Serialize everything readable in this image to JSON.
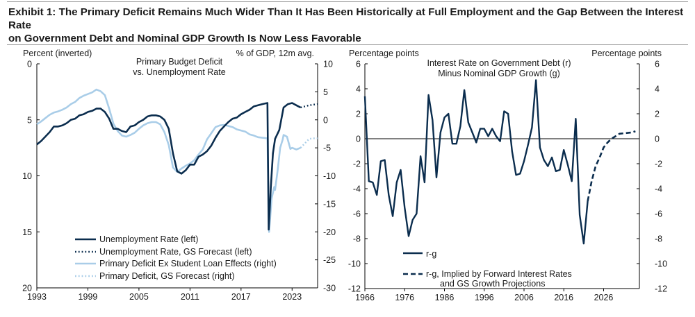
{
  "exhibit": {
    "title_line1": "Exhibit 1: The Primary Deficit Remains Much Wider Than It Has Been Historically at Full Employment and the Gap Between the Interest Rate",
    "title_line2": "on Government Debt and Nominal GDP Growth Is Now Less Favorable"
  },
  "colors": {
    "dark_navy": "#0b2d4e",
    "light_blue": "#a9cde8"
  },
  "chart_data": [
    {
      "type": "line",
      "title": "Primary Budget Deficit vs. Unemployment Rate",
      "title_lines": [
        "Primary Budget Deficit",
        "vs. Unemployment Rate"
      ],
      "left_axis": {
        "label": "Percent (inverted)",
        "ylim": [
          0,
          20
        ],
        "inverted": true,
        "ticks": [
          0,
          5,
          10,
          15,
          20
        ]
      },
      "right_axis": {
        "label": "% of GDP, 12m avg.",
        "ylim": [
          -30,
          10
        ],
        "ticks": [
          10,
          5,
          0,
          -5,
          -10,
          -15,
          -20,
          -25,
          -30
        ]
      },
      "xlim": [
        1993,
        2026
      ],
      "x_ticks": [
        1993,
        1999,
        2005,
        2011,
        2017,
        2023
      ],
      "legend_position": "bottom-left",
      "series": [
        {
          "name": "Unemployment Rate (left)",
          "axis": "left",
          "style": "solid",
          "color": "#0b2d4e",
          "x": [
            1993,
            1993.5,
            1994,
            1994.5,
            1995,
            1995.5,
            1996,
            1996.5,
            1997,
            1997.5,
            1998,
            1998.5,
            1999,
            1999.5,
            2000,
            2000.5,
            2001,
            2001.5,
            2002,
            2002.5,
            2003,
            2003.5,
            2004,
            2004.5,
            2005,
            2005.5,
            2006,
            2006.5,
            2007,
            2007.5,
            2008,
            2008.5,
            2009,
            2009.5,
            2010,
            2010.5,
            2011,
            2011.5,
            2012,
            2012.5,
            2013,
            2013.5,
            2014,
            2014.5,
            2015,
            2015.5,
            2016,
            2016.5,
            2017,
            2017.5,
            2018,
            2018.5,
            2019,
            2019.5,
            2020.1,
            2020.25,
            2020.5,
            2020.75,
            2021,
            2021.5,
            2022,
            2022.5,
            2023,
            2023.5,
            2024
          ],
          "y": [
            7.2,
            6.9,
            6.5,
            6.1,
            5.6,
            5.6,
            5.5,
            5.3,
            5.0,
            4.9,
            4.6,
            4.5,
            4.3,
            4.2,
            4.0,
            4.0,
            4.3,
            4.9,
            5.8,
            5.8,
            6.0,
            6.1,
            5.6,
            5.5,
            5.2,
            5.0,
            4.7,
            4.6,
            4.6,
            4.7,
            5.0,
            5.8,
            8.0,
            9.6,
            9.8,
            9.5,
            9.0,
            9.0,
            8.3,
            8.1,
            7.8,
            7.3,
            6.6,
            6.0,
            5.6,
            5.2,
            4.9,
            4.8,
            4.5,
            4.3,
            4.1,
            3.8,
            3.7,
            3.6,
            3.5,
            14.8,
            11.0,
            8.0,
            6.7,
            5.9,
            3.9,
            3.6,
            3.5,
            3.7,
            3.9
          ]
        },
        {
          "name": "Unemployment Rate, GS Forecast (left)",
          "axis": "left",
          "style": "dotted",
          "color": "#0b2d4e",
          "x": [
            2024,
            2024.5,
            2025,
            2025.5,
            2026
          ],
          "y": [
            3.9,
            3.8,
            3.7,
            3.65,
            3.6
          ]
        },
        {
          "name": "Primary Deficit Ex Student Loan Effects (right)",
          "axis": "right",
          "style": "solid",
          "color": "#a9cde8",
          "x": [
            1993,
            1993.5,
            1994,
            1994.5,
            1995,
            1995.5,
            1996,
            1996.5,
            1997,
            1997.5,
            1998,
            1998.5,
            1999,
            1999.5,
            2000,
            2000.5,
            2001,
            2001.5,
            2002,
            2002.5,
            2003,
            2003.5,
            2004,
            2004.5,
            2005,
            2005.5,
            2006,
            2006.5,
            2007,
            2007.5,
            2008,
            2008.5,
            2009,
            2009.5,
            2010,
            2010.5,
            2011,
            2011.5,
            2012,
            2012.5,
            2013,
            2013.5,
            2014,
            2014.5,
            2015,
            2015.5,
            2016,
            2016.5,
            2017,
            2017.5,
            2018,
            2018.5,
            2019,
            2019.5,
            2020.1,
            2020.3,
            2020.6,
            2020.9,
            2021,
            2021.3,
            2021.6,
            2021.9,
            2022,
            2022.4,
            2022.8,
            2023,
            2023.5,
            2024
          ],
          "y": [
            -0.8,
            -0.3,
            0.3,
            0.9,
            1.3,
            1.5,
            1.8,
            2.2,
            2.8,
            3.2,
            3.9,
            4.3,
            4.6,
            4.9,
            5.4,
            5.1,
            4.4,
            2.0,
            -0.7,
            -2.0,
            -2.8,
            -3.0,
            -2.7,
            -2.3,
            -1.6,
            -1.0,
            -0.6,
            -0.4,
            -0.4,
            -0.8,
            -2.2,
            -4.5,
            -8.5,
            -9.3,
            -8.7,
            -8.2,
            -7.8,
            -7.2,
            -6.2,
            -5.3,
            -3.5,
            -2.4,
            -1.3,
            -1.0,
            -0.9,
            -1.1,
            -1.3,
            -1.7,
            -1.9,
            -2.1,
            -2.6,
            -2.8,
            -3.1,
            -3.2,
            -3.3,
            -20.0,
            -14.0,
            -12.0,
            -12.5,
            -9.0,
            -5.0,
            -3.5,
            -2.7,
            -3.0,
            -5.2,
            -5.0,
            -5.3,
            -5.0
          ]
        },
        {
          "name": "Primary Deficit, GS Forecast (right)",
          "axis": "right",
          "style": "dotted",
          "color": "#a9cde8",
          "x": [
            2024,
            2024.5,
            2025,
            2025.5,
            2026
          ],
          "y": [
            -5.0,
            -4.2,
            -3.4,
            -3.3,
            -3.3
          ]
        }
      ]
    },
    {
      "type": "line",
      "title": "Interest Rate on Government Debt (r) Minus Nominal GDP Growth (g)",
      "title_lines": [
        "Interest Rate on Government Debt (r)",
        "Minus Nominal GDP Growth (g)"
      ],
      "left_axis": {
        "label": "Percentage points",
        "ylim": [
          -12,
          6
        ],
        "ticks": [
          6,
          4,
          2,
          0,
          -2,
          -4,
          -6,
          -8,
          -10,
          -12
        ]
      },
      "right_axis": {
        "label": "Percentage points",
        "ylim": [
          -12,
          6
        ],
        "ticks": [
          6,
          4,
          2,
          0,
          -2,
          -4,
          -6,
          -8,
          -10,
          -12
        ]
      },
      "xlim": [
        1966,
        2035
      ],
      "x_ticks": [
        1966,
        1976,
        1986,
        1996,
        2006,
        2016,
        2026
      ],
      "legend_position": "bottom-left",
      "series": [
        {
          "name": "r-g",
          "axis": "left",
          "style": "solid",
          "color": "#0b2d4e",
          "x": [
            1966,
            1967,
            1968,
            1969,
            1970,
            1971,
            1972,
            1973,
            1974,
            1975,
            1976,
            1977,
            1978,
            1979,
            1980,
            1981,
            1982,
            1983,
            1984,
            1985,
            1986,
            1987,
            1988,
            1989,
            1990,
            1991,
            1992,
            1993,
            1994,
            1995,
            1996,
            1997,
            1998,
            1999,
            2000,
            2001,
            2002,
            2003,
            2004,
            2005,
            2006,
            2007,
            2008,
            2009,
            2010,
            2011,
            2012,
            2013,
            2014,
            2015,
            2016,
            2017,
            2018,
            2019,
            2020,
            2021,
            2022
          ],
          "y": [
            3.4,
            -3.4,
            -3.5,
            -4.5,
            -1.8,
            -1.7,
            -4.5,
            -6.2,
            -3.5,
            -2.5,
            -5.5,
            -7.8,
            -6.5,
            -6.0,
            -1.4,
            -3.5,
            3.5,
            1.5,
            -3.1,
            0.5,
            1.7,
            2.0,
            -0.4,
            -0.4,
            1.0,
            3.9,
            1.3,
            0.5,
            -0.3,
            0.8,
            0.8,
            0.2,
            0.8,
            0.2,
            -0.2,
            2.2,
            2.0,
            -1.0,
            -2.9,
            -2.8,
            -1.8,
            -0.5,
            0.9,
            4.7,
            -0.7,
            -1.7,
            -2.2,
            -1.5,
            -2.6,
            -2.5,
            -0.9,
            -2.1,
            -3.4,
            1.6,
            -6.1,
            -8.4,
            -5.0
          ]
        },
        {
          "name": "r-g, Implied by Forward Interest Rates and GS Growth Projections",
          "axis": "left",
          "style": "dashed",
          "color": "#0b2d4e",
          "x": [
            2022,
            2023,
            2024,
            2025,
            2026,
            2027,
            2028,
            2029,
            2030,
            2033,
            2034
          ],
          "y": [
            -5.0,
            -3.4,
            -2.2,
            -1.5,
            -0.7,
            -0.3,
            0.0,
            0.2,
            0.4,
            0.5,
            0.6
          ]
        }
      ],
      "legend_labels": {
        "rg": "r-g",
        "rg_forward_line1": "r-g, Implied by Forward Interest Rates",
        "rg_forward_line2": "and GS Growth Projections"
      }
    }
  ]
}
